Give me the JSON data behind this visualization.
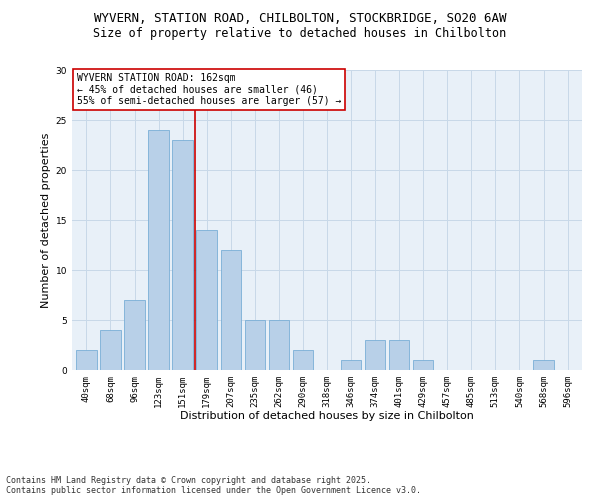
{
  "title_line1": "WYVERN, STATION ROAD, CHILBOLTON, STOCKBRIDGE, SO20 6AW",
  "title_line2": "Size of property relative to detached houses in Chilbolton",
  "xlabel": "Distribution of detached houses by size in Chilbolton",
  "ylabel": "Number of detached properties",
  "categories": [
    "40sqm",
    "68sqm",
    "96sqm",
    "123sqm",
    "151sqm",
    "179sqm",
    "207sqm",
    "235sqm",
    "262sqm",
    "290sqm",
    "318sqm",
    "346sqm",
    "374sqm",
    "401sqm",
    "429sqm",
    "457sqm",
    "485sqm",
    "513sqm",
    "540sqm",
    "568sqm",
    "596sqm"
  ],
  "values": [
    2,
    4,
    7,
    24,
    23,
    14,
    12,
    5,
    5,
    2,
    0,
    1,
    3,
    3,
    1,
    0,
    0,
    0,
    0,
    1,
    0
  ],
  "bar_color": "#b8d0e8",
  "bar_edge_color": "#7aaed6",
  "vline_x": 4.5,
  "vline_color": "#cc0000",
  "annotation_text": "WYVERN STATION ROAD: 162sqm\n← 45% of detached houses are smaller (46)\n55% of semi-detached houses are larger (57) →",
  "annotation_box_color": "white",
  "annotation_box_edge_color": "#cc0000",
  "ylim": [
    0,
    30
  ],
  "yticks": [
    0,
    5,
    10,
    15,
    20,
    25,
    30
  ],
  "grid_color": "#c8d8e8",
  "bg_color": "#e8f0f8",
  "footer_text": "Contains HM Land Registry data © Crown copyright and database right 2025.\nContains public sector information licensed under the Open Government Licence v3.0.",
  "title_fontsize": 9,
  "title2_fontsize": 8.5,
  "xlabel_fontsize": 8,
  "ylabel_fontsize": 8,
  "tick_fontsize": 6.5,
  "annotation_fontsize": 7,
  "footer_fontsize": 6
}
